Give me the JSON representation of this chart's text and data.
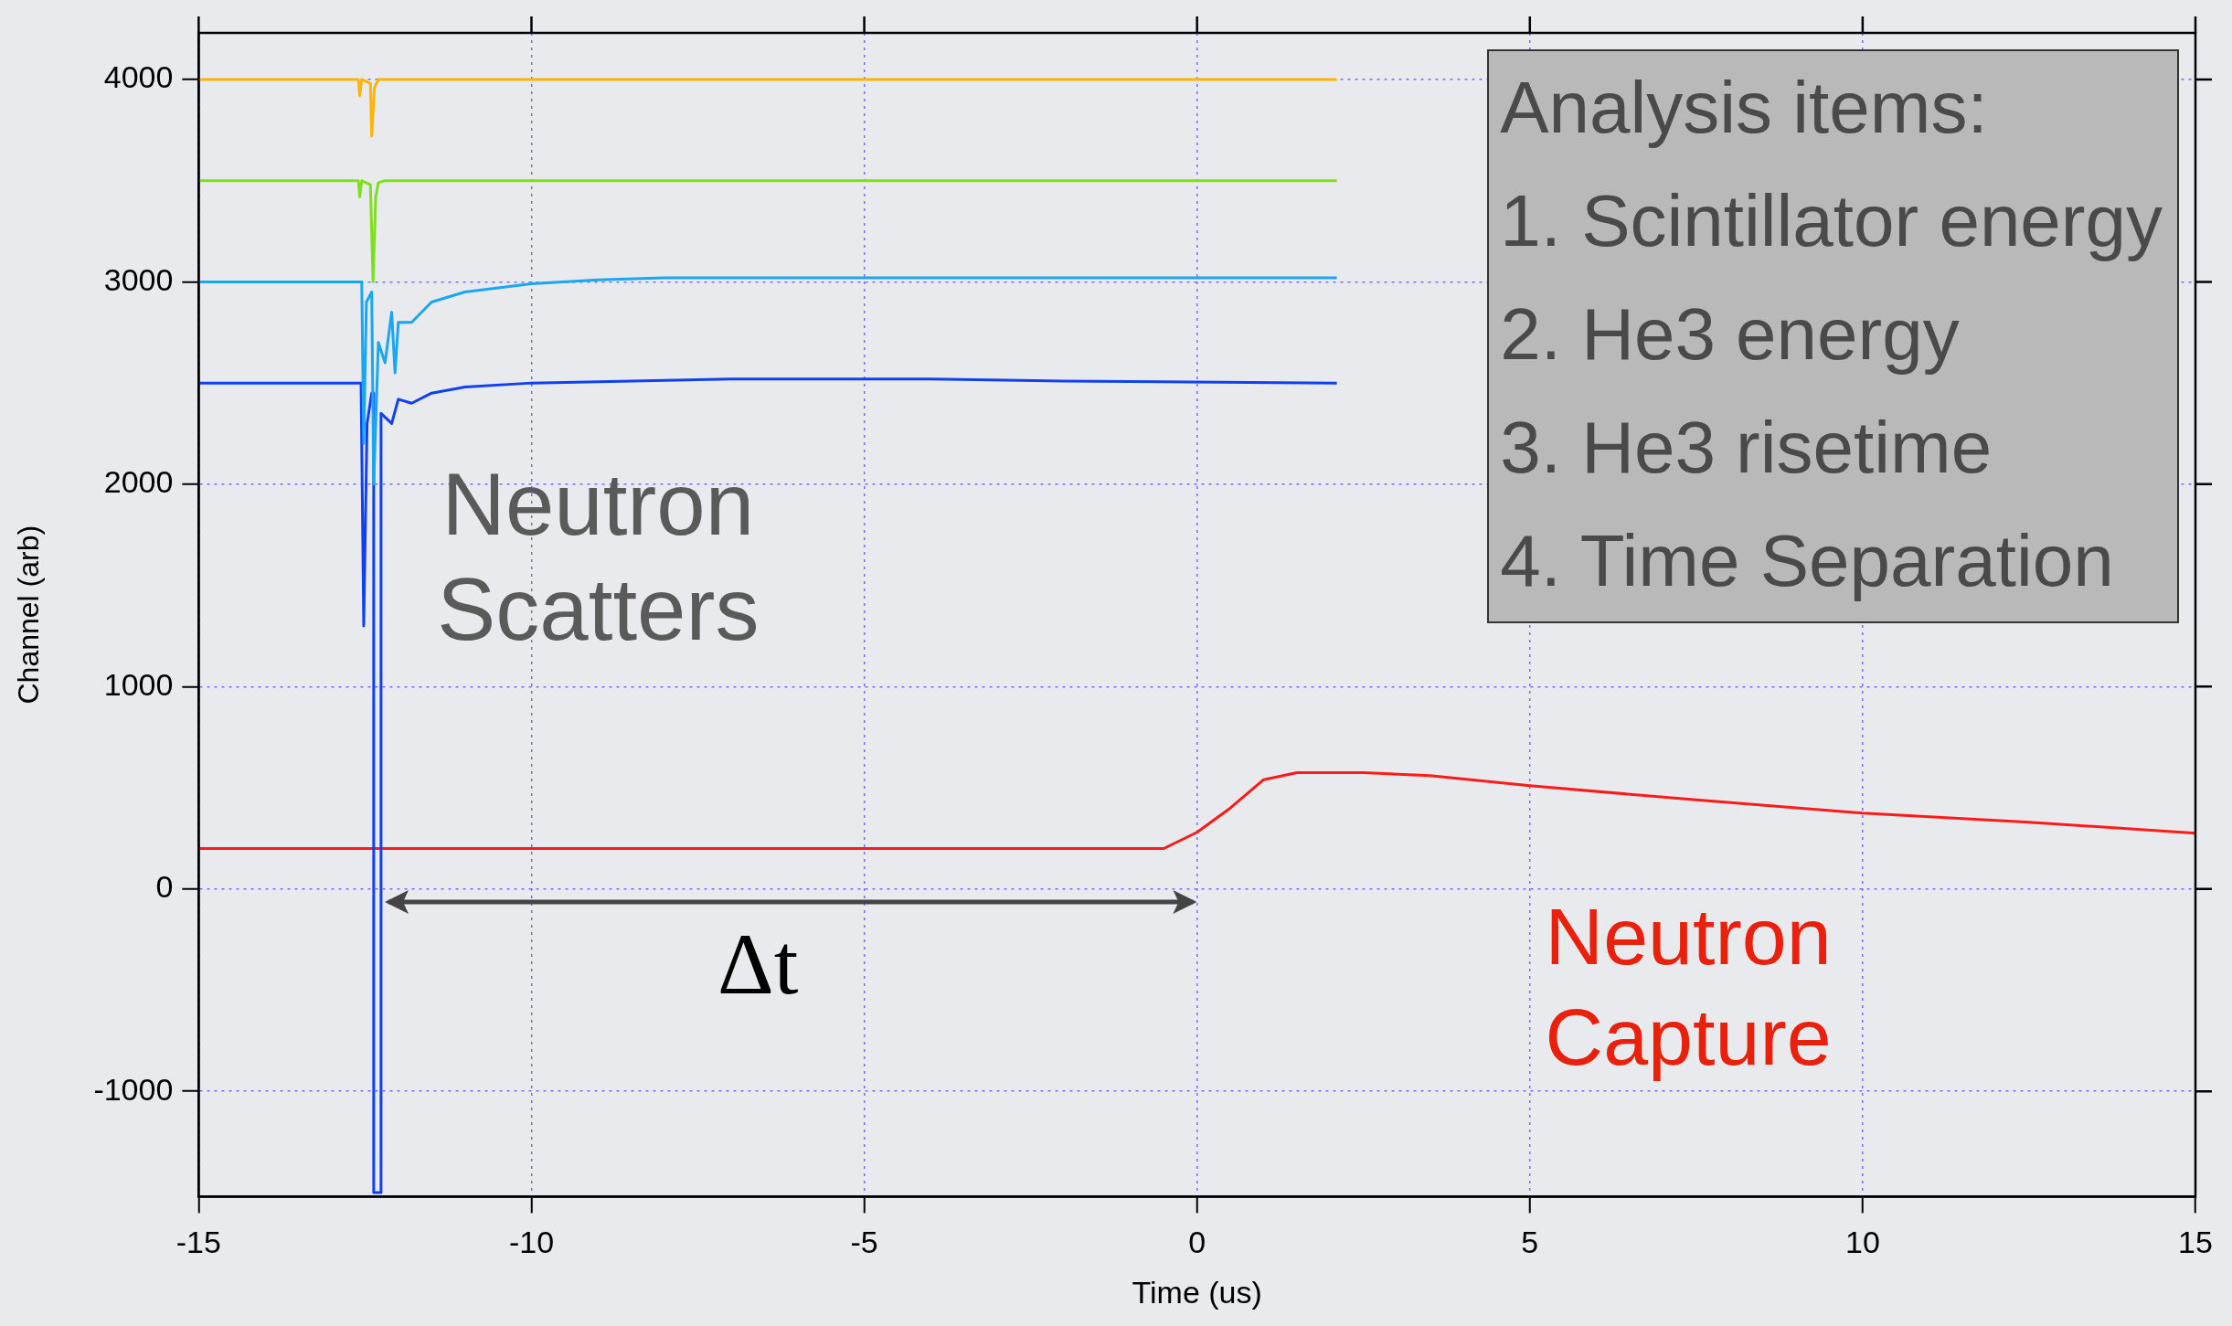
{
  "chart_data": {
    "type": "line",
    "xlabel": "Time (us)",
    "ylabel": "Channel (arb)",
    "xlim": [
      -15,
      15
    ],
    "ylim": [
      -1520,
      4230
    ],
    "xticks": [
      -15,
      -10,
      -5,
      0,
      5,
      10,
      15
    ],
    "yticks": [
      -1000,
      0,
      1000,
      2000,
      3000,
      4000
    ],
    "grid": true,
    "legend": false,
    "marker": "none",
    "line_style": "solid",
    "series": [
      {
        "color": "#ffb400",
        "x": [
          -15,
          -12.6,
          -12.58,
          -12.55,
          -12.42,
          -12.4,
          -12.36,
          -12.3,
          -12.2,
          2.1
        ],
        "values": [
          4000,
          4000,
          3920,
          4000,
          3980,
          3720,
          3960,
          4000,
          4000,
          4000
        ]
      },
      {
        "color": "#7ee01a",
        "x": [
          -15,
          -12.6,
          -12.58,
          -12.55,
          -12.42,
          -12.38,
          -12.34,
          -12.3,
          -12.2,
          2.1
        ],
        "values": [
          3500,
          3500,
          3420,
          3500,
          3480,
          3000,
          3420,
          3490,
          3500,
          3500
        ]
      },
      {
        "color": "#1aa6f0",
        "x": [
          -15,
          -12.55,
          -12.52,
          -12.48,
          -12.4,
          -12.37,
          -12.3,
          -12.2,
          -12.1,
          -12.05,
          -12,
          -11.8,
          -11.5,
          -11,
          -10,
          -9,
          -8,
          2.1
        ],
        "values": [
          3000,
          3000,
          2200,
          2900,
          2950,
          2000,
          2700,
          2600,
          2850,
          2550,
          2800,
          2800,
          2900,
          2950,
          2990,
          3010,
          3020,
          3020
        ]
      },
      {
        "color": "#1040f0",
        "x": [
          -15,
          -12.56,
          -12.52,
          -12.47,
          -12.4,
          -12.37,
          -12.37,
          -12.26,
          -12.26,
          -12.1,
          -12,
          -11.8,
          -11.5,
          -11,
          -10,
          -7,
          -4,
          -2,
          2.1
        ],
        "values": [
          2500,
          2500,
          1300,
          2300,
          2450,
          2450,
          -1500,
          -1500,
          2350,
          2300,
          2420,
          2400,
          2450,
          2480,
          2500,
          2520,
          2520,
          2510,
          2500
        ]
      },
      {
        "color": "#ff1a1a",
        "x": [
          -15,
          -0.5,
          0,
          0.5,
          1,
          1.5,
          2.5,
          3.5,
          5,
          7.5,
          10,
          12.5,
          15
        ],
        "values": [
          200,
          200,
          280,
          400,
          540,
          575,
          575,
          560,
          510,
          440,
          375,
          330,
          275
        ]
      }
    ],
    "annotations": [
      "Neutron\nScatters",
      "Δt",
      "Neutron\nCapture",
      "Analysis items:\n1. Scintillator energy\n2. He3 energy\n3. He3 risetime\n4. Time Separation"
    ]
  }
}
